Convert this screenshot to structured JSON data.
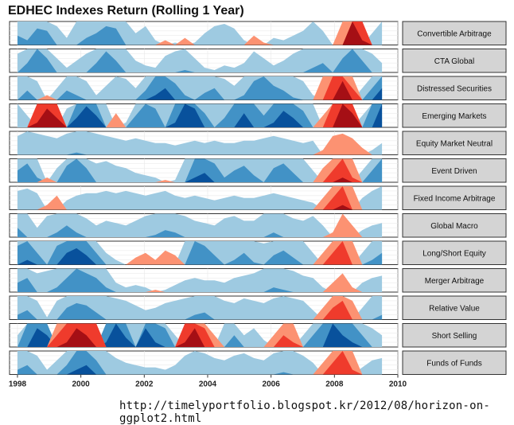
{
  "chart_data": {
    "type": "horizon",
    "title": "EDHEC Indexes Return (Rolling 1 Year)",
    "x_ticks": [
      "1998",
      "2000",
      "2002",
      "2004",
      "2006",
      "2008",
      "2010"
    ],
    "x_range": [
      1997.75,
      2010.0
    ],
    "data_x_range": [
      1998.0,
      2009.5
    ],
    "horizon_bands": 3,
    "band_colors": {
      "positive": [
        "#9ecae1",
        "#4292c6",
        "#08519c"
      ],
      "negative": [
        "#fc9272",
        "#ef3b2c",
        "#a50f15"
      ]
    },
    "band_scale": 0.1,
    "series": [
      {
        "name": "Convertible Arbitrage",
        "values": [
          0.14,
          0.12,
          0.17,
          0.16,
          0.08,
          0.03,
          0.1,
          0.13,
          0.15,
          0.18,
          0.17,
          0.1,
          0.05,
          0.08,
          0.02,
          -0.02,
          0.01,
          -0.03,
          0.01,
          0.05,
          0.08,
          0.09,
          0.07,
          0.02,
          -0.04,
          -0.01,
          0.03,
          0.02,
          0.04,
          0.06,
          0.1,
          0.06,
          0.0,
          -0.1,
          -0.3,
          -0.22,
          0.05,
          0.1
        ]
      },
      {
        "name": "CTA Global",
        "values": [
          0.08,
          0.14,
          0.2,
          0.16,
          0.06,
          0.02,
          0.05,
          0.08,
          0.14,
          0.19,
          0.15,
          0.1,
          0.05,
          0.03,
          0.02,
          0.07,
          0.09,
          0.11,
          0.06,
          0.02,
          0.01,
          0.03,
          0.02,
          0.04,
          0.09,
          0.06,
          0.03,
          0.05,
          0.08,
          0.1,
          0.12,
          0.14,
          0.1,
          0.16,
          0.2,
          0.15,
          0.08,
          0.04
        ]
      },
      {
        "name": "Distressed Securities",
        "values": [
          0.1,
          0.14,
          0.08,
          -0.02,
          0.05,
          0.14,
          0.12,
          0.08,
          0.02,
          0.06,
          0.1,
          0.09,
          0.05,
          0.14,
          0.22,
          0.25,
          0.17,
          0.12,
          0.1,
          0.13,
          0.15,
          0.09,
          0.06,
          0.12,
          0.18,
          0.2,
          0.16,
          0.14,
          0.11,
          0.08,
          0.02,
          -0.1,
          -0.2,
          -0.28,
          -0.15,
          0.05,
          0.15,
          0.25
        ]
      },
      {
        "name": "Emerging Markets",
        "values": [
          0.1,
          0.05,
          -0.22,
          -0.28,
          -0.24,
          0.08,
          0.24,
          0.29,
          0.25,
          0.1,
          -0.06,
          0.02,
          0.15,
          0.2,
          0.18,
          0.1,
          0.22,
          0.3,
          0.28,
          0.16,
          0.1,
          0.14,
          0.2,
          0.26,
          0.2,
          0.15,
          0.22,
          0.27,
          0.24,
          0.17,
          0.1,
          -0.05,
          -0.2,
          -0.3,
          -0.26,
          0.05,
          0.2,
          0.3
        ]
      },
      {
        "name": "Equity Market Neutral",
        "values": [
          0.08,
          0.1,
          0.09,
          0.08,
          0.07,
          0.09,
          0.11,
          0.1,
          0.09,
          0.08,
          0.07,
          0.06,
          0.07,
          0.06,
          0.05,
          0.05,
          0.04,
          0.05,
          0.06,
          0.05,
          0.06,
          0.05,
          0.05,
          0.06,
          0.06,
          0.07,
          0.08,
          0.07,
          0.06,
          0.05,
          0.06,
          -0.02,
          -0.08,
          -0.09,
          -0.07,
          -0.03,
          0.02,
          0.05
        ]
      },
      {
        "name": "Event Driven",
        "values": [
          0.15,
          0.18,
          0.12,
          -0.02,
          0.06,
          0.17,
          0.2,
          0.16,
          0.08,
          0.09,
          0.07,
          0.06,
          0.04,
          0.03,
          0.02,
          -0.01,
          0.01,
          0.1,
          0.22,
          0.24,
          0.18,
          0.12,
          0.15,
          0.17,
          0.13,
          0.1,
          0.16,
          0.18,
          0.14,
          0.1,
          0.05,
          -0.06,
          -0.15,
          -0.22,
          -0.12,
          0.05,
          0.15,
          0.2
        ]
      },
      {
        "name": "Fixed Income Arbitrage",
        "values": [
          0.08,
          0.09,
          0.07,
          -0.02,
          -0.06,
          0.04,
          0.06,
          0.07,
          0.07,
          0.08,
          0.07,
          0.08,
          0.07,
          0.06,
          0.07,
          0.08,
          0.06,
          0.05,
          0.06,
          0.05,
          0.04,
          0.05,
          0.06,
          0.05,
          0.05,
          0.06,
          0.07,
          0.06,
          0.05,
          0.04,
          0.03,
          -0.05,
          -0.15,
          -0.22,
          -0.1,
          0.05,
          0.08,
          0.1
        ]
      },
      {
        "name": "Global Macro",
        "values": [
          0.14,
          0.1,
          0.04,
          0.09,
          0.12,
          0.15,
          0.12,
          0.08,
          0.05,
          0.07,
          0.06,
          0.05,
          0.07,
          0.09,
          0.11,
          0.13,
          0.12,
          0.09,
          0.07,
          0.06,
          0.05,
          0.08,
          0.09,
          0.07,
          0.07,
          0.1,
          0.12,
          0.1,
          0.08,
          0.07,
          0.09,
          0.05,
          -0.02,
          -0.1,
          -0.05,
          0.03,
          0.05,
          0.06
        ]
      },
      {
        "name": "Long/Short Equity",
        "values": [
          0.18,
          0.22,
          0.15,
          0.1,
          0.18,
          0.25,
          0.27,
          0.24,
          0.15,
          0.05,
          0.02,
          0.0,
          -0.03,
          -0.05,
          -0.02,
          -0.06,
          -0.04,
          0.1,
          0.2,
          0.18,
          0.14,
          0.1,
          0.12,
          0.15,
          0.11,
          0.09,
          0.14,
          0.16,
          0.13,
          0.1,
          0.05,
          -0.05,
          -0.15,
          -0.2,
          -0.1,
          0.05,
          0.12,
          0.15
        ]
      },
      {
        "name": "Merger Arbitrage",
        "values": [
          0.14,
          0.16,
          0.08,
          0.09,
          0.12,
          0.16,
          0.2,
          0.18,
          0.16,
          0.12,
          0.04,
          0.02,
          0.03,
          0.02,
          -0.01,
          0.01,
          0.03,
          0.05,
          0.06,
          0.05,
          0.05,
          0.04,
          0.06,
          0.07,
          0.08,
          0.1,
          0.12,
          0.11,
          0.09,
          0.07,
          0.06,
          0.02,
          -0.04,
          -0.08,
          -0.02,
          0.04,
          0.06,
          0.07
        ]
      },
      {
        "name": "Relative Value",
        "values": [
          0.12,
          0.14,
          0.08,
          0.01,
          0.08,
          0.15,
          0.17,
          0.16,
          0.13,
          0.1,
          0.09,
          0.08,
          0.06,
          0.04,
          0.05,
          0.07,
          0.08,
          0.09,
          0.12,
          0.13,
          0.1,
          0.08,
          0.07,
          0.09,
          0.08,
          0.07,
          0.09,
          0.1,
          0.09,
          0.08,
          0.04,
          -0.05,
          -0.15,
          -0.18,
          -0.08,
          0.05,
          0.1,
          0.12
        ]
      },
      {
        "name": "Short Selling",
        "values": [
          0.05,
          0.2,
          0.28,
          0.25,
          -0.15,
          -0.22,
          -0.28,
          -0.25,
          -0.2,
          0.22,
          0.3,
          0.24,
          0.1,
          0.28,
          0.22,
          0.18,
          0.05,
          -0.22,
          -0.28,
          -0.18,
          -0.05,
          0.1,
          0.15,
          0.05,
          0.08,
          0.03,
          -0.05,
          -0.15,
          -0.12,
          0.05,
          0.15,
          0.2,
          0.3,
          0.25,
          0.22,
          0.15,
          0.08,
          0.05
        ]
      },
      {
        "name": "Funds of Funds",
        "values": [
          0.12,
          0.14,
          0.08,
          0.02,
          0.06,
          0.14,
          0.22,
          0.24,
          0.16,
          0.1,
          0.07,
          0.05,
          0.04,
          0.03,
          0.03,
          0.02,
          0.04,
          0.08,
          0.1,
          0.09,
          0.07,
          0.06,
          0.08,
          0.09,
          0.07,
          0.06,
          0.09,
          0.11,
          0.1,
          0.08,
          0.05,
          -0.05,
          -0.15,
          -0.2,
          -0.12,
          0.03,
          0.06,
          0.07
        ]
      }
    ]
  },
  "source": "http://timelyportfolio.blogspot.kr/2012/08/horizon-on-ggplot2.html"
}
